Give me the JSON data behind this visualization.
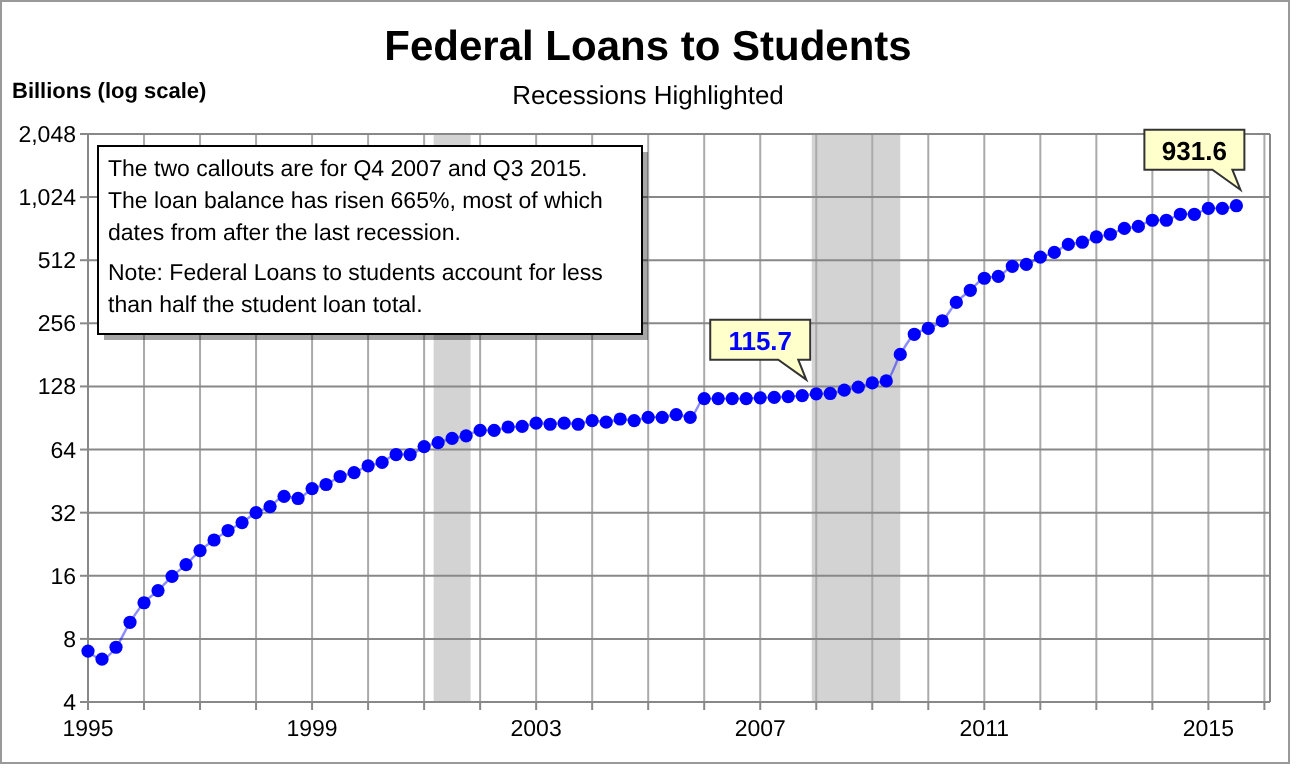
{
  "chart_data": {
    "type": "line",
    "title": "Federal Loans to Students",
    "subtitle": "Recessions Highlighted",
    "ylabel": "Billions (log scale)",
    "log": true,
    "grid": true,
    "marker": "circle",
    "line_style": "solid",
    "annotations": [
      "The two callouts are for Q4 2007 and Q3 2015. The loan balance has risen 665%, most of which dates from after the last recession.",
      "Note:  Federal Loans to students account for less than half the student loan total."
    ],
    "xlim": [
      1995,
      2016.1
    ],
    "xticks": [
      1995,
      {
        "value": 1996,
        "label": null
      },
      {
        "value": 1997,
        "label": null
      },
      {
        "value": 1998,
        "label": null
      },
      1999,
      {
        "value": 2000,
        "label": null
      },
      {
        "value": 2001,
        "label": null
      },
      {
        "value": 2002,
        "label": null
      },
      2003,
      {
        "value": 2004,
        "label": null
      },
      {
        "value": 2005,
        "label": null
      },
      {
        "value": 2006,
        "label": null
      },
      2007,
      {
        "value": 2008,
        "label": null
      },
      {
        "value": 2009,
        "label": null
      },
      {
        "value": 2010,
        "label": null
      },
      2011,
      {
        "value": 2012,
        "label": null
      },
      {
        "value": 2013,
        "label": null
      },
      {
        "value": 2014,
        "label": null
      },
      2015,
      {
        "value": 2016,
        "label": null
      }
    ],
    "ylim": [
      4,
      2048
    ],
    "yticks": [
      4,
      8,
      16,
      32,
      64,
      128,
      256,
      512,
      {
        "value": 1024,
        "label": "1,024"
      },
      {
        "value": 2048,
        "label": "2,048"
      }
    ],
    "bands": [
      {
        "axis": "x",
        "from": 2001.17,
        "to": 2001.83,
        "color": "#d3d3d3"
      },
      {
        "axis": "x",
        "from": 2007.92,
        "to": 2009.5,
        "color": "#d3d3d3"
      }
    ],
    "x": [
      1995,
      1995.25,
      1995.5,
      1995.75,
      1996,
      1996.25,
      1996.5,
      1996.75,
      1997,
      1997.25,
      1997.5,
      1997.75,
      1998,
      1998.25,
      1998.5,
      1998.75,
      1999,
      1999.25,
      1999.5,
      1999.75,
      2000,
      2000.25,
      2000.5,
      2000.75,
      2001,
      2001.25,
      2001.5,
      2001.75,
      2002,
      2002.25,
      2002.5,
      2002.75,
      2003,
      2003.25,
      2003.5,
      2003.75,
      2004,
      2004.25,
      2004.5,
      2004.75,
      2005,
      2005.25,
      2005.5,
      2005.75,
      2006,
      2006.25,
      2006.5,
      2006.75,
      2007,
      2007.25,
      2007.5,
      2007.75,
      2008,
      2008.25,
      2008.5,
      2008.75,
      2009,
      2009.25,
      2009.5,
      2009.75,
      2010,
      2010.25,
      2010.5,
      2010.75,
      2011,
      2011.25,
      2011.5,
      2011.75,
      2012,
      2012.25,
      2012.5,
      2012.75,
      2013,
      2013.25,
      2013.5,
      2013.75,
      2014,
      2014.25,
      2014.5,
      2014.75,
      2015,
      2015.25,
      2015.5
    ],
    "series": [
      {
        "color": "#0000ff",
        "values": [
          7.0,
          6.4,
          7.3,
          9.6,
          11.9,
          13.6,
          15.9,
          18.1,
          21.1,
          23.7,
          26.3,
          28.7,
          32.0,
          34.2,
          38.3,
          37.4,
          41.7,
          43.6,
          47.6,
          49.7,
          53.5,
          55.6,
          60.6,
          60.6,
          66.1,
          69.1,
          72.3,
          74.4,
          79,
          79,
          82,
          82.5,
          85.6,
          84.5,
          85.6,
          84.5,
          88,
          86.5,
          89.5,
          88,
          91.2,
          91.2,
          94,
          91.2,
          112,
          112,
          112,
          112,
          113,
          113.5,
          114.5,
          115.7,
          118,
          118.5,
          123,
          127,
          133,
          136,
          182,
          227,
          242,
          263,
          322,
          368,
          420,
          429,
          479,
          489,
          530,
          558,
          609,
          624,
          661,
          681,
          726,
          742,
          794,
          794,
          848,
          848,
          905,
          905,
          931.6
        ],
        "value_labels": [
          null,
          null,
          null,
          null,
          null,
          null,
          null,
          null,
          null,
          null,
          null,
          null,
          null,
          null,
          null,
          null,
          null,
          null,
          null,
          null,
          null,
          null,
          null,
          null,
          null,
          null,
          null,
          null,
          null,
          null,
          null,
          null,
          null,
          null,
          null,
          null,
          null,
          null,
          null,
          null,
          null,
          null,
          null,
          null,
          null,
          null,
          null,
          null,
          null,
          null,
          null,
          "115.7",
          null,
          null,
          null,
          null,
          null,
          null,
          null,
          null,
          null,
          null,
          null,
          null,
          null,
          null,
          null,
          null,
          null,
          null,
          null,
          null,
          null,
          null,
          null,
          null,
          null,
          null,
          null,
          null,
          null,
          null,
          "931.6"
        ]
      }
    ]
  }
}
